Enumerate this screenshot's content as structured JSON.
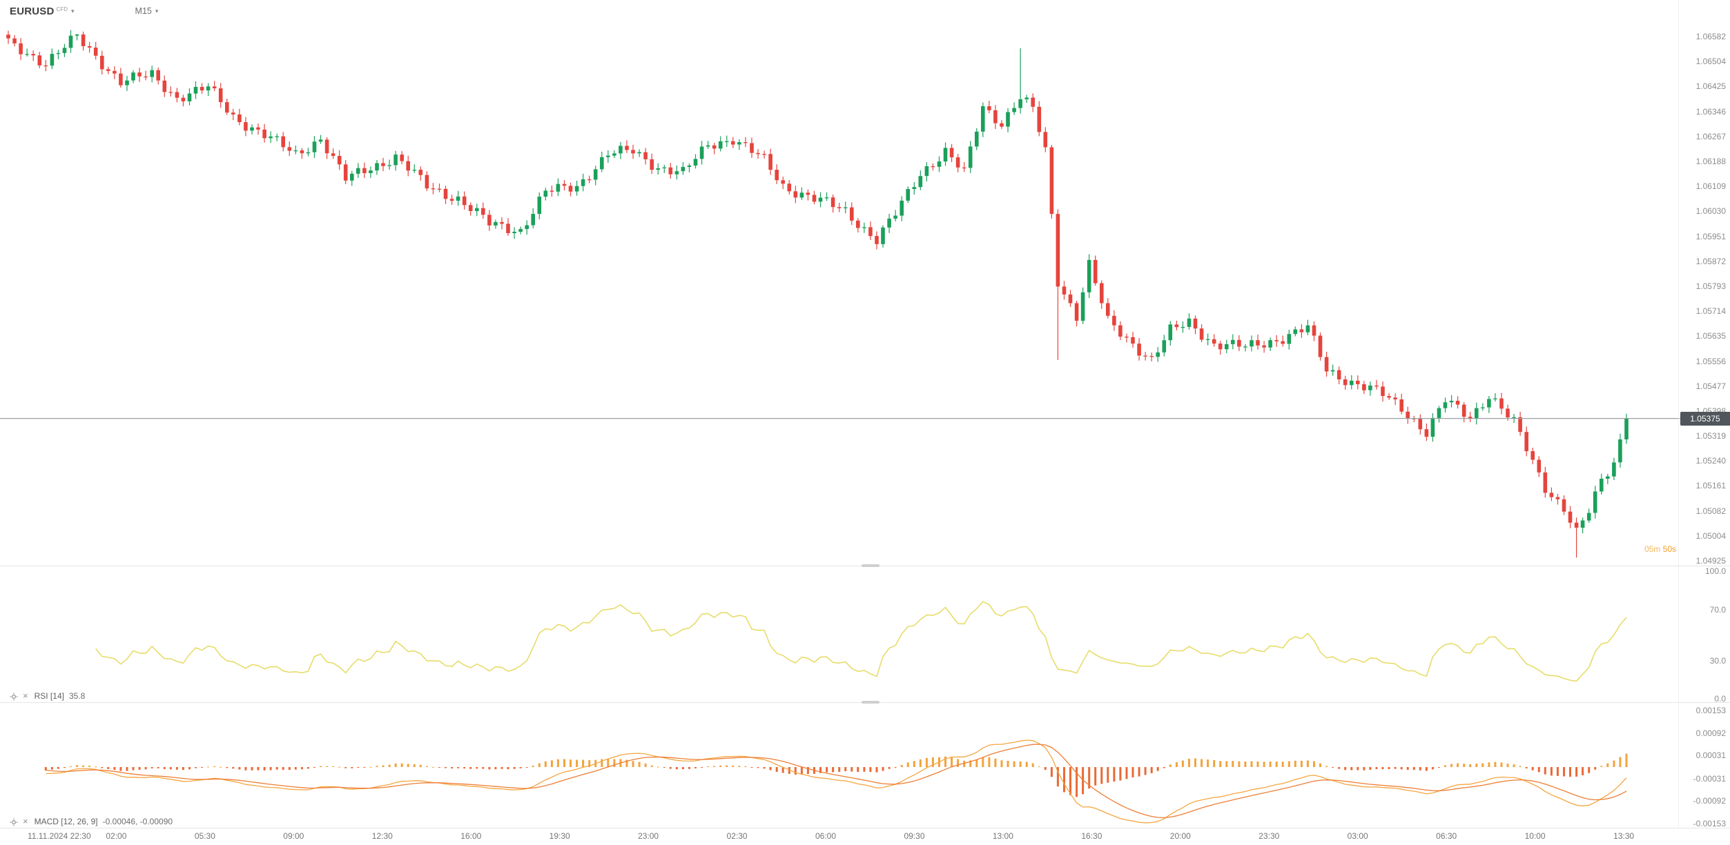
{
  "header": {
    "symbol": "EURUSD",
    "instrument_type": "CFD",
    "timeframe": "M15"
  },
  "icons": {
    "caret_down": "▾",
    "close": "×"
  },
  "colors": {
    "bull": "#1aa05a",
    "bear": "#e5443d",
    "rsi_line": "#e7dc6a",
    "macd_line": "#f4a53f",
    "signal_line": "#ee7d33",
    "hist_pos": "#f2a33c",
    "hist_neg": "#e96a35",
    "price_line": "#9aa0a6",
    "badge_bg": "#51565c",
    "countdown": "#f59b23",
    "axis_text": "#8c8c8c"
  },
  "price_axis": {
    "ticks": [
      "1.06582",
      "1.06504",
      "1.06425",
      "1.06346",
      "1.06267",
      "1.06188",
      "1.06109",
      "1.06030",
      "1.05951",
      "1.05872",
      "1.05793",
      "1.05714",
      "1.05635",
      "1.05556",
      "1.05477",
      "1.05398",
      "1.05319",
      "1.05240",
      "1.05161",
      "1.05082",
      "1.05004",
      "1.04925"
    ]
  },
  "current_price": {
    "value": "1.05375"
  },
  "countdown": {
    "minutes": "05m",
    "seconds": "50s"
  },
  "rsi_panel": {
    "label": "RSI [14]",
    "value": "35.8",
    "ticks": [
      "100.0",
      "70.0",
      "30.0",
      "0.0"
    ]
  },
  "macd_panel": {
    "label": "MACD [12, 26, 9]",
    "value": "-0.00046, -0.00090",
    "ticks": [
      "0.00153",
      "0.00092",
      "0.00031",
      "-0.00031",
      "-0.00092",
      "-0.00153"
    ]
  },
  "time_axis": {
    "labels": [
      "11.11.2024 22:30",
      "02:00",
      "05:30",
      "09:00",
      "12:30",
      "16:00",
      "19:30",
      "23:00",
      "02:30",
      "06:00",
      "09:30",
      "13:00",
      "16:30",
      "20:00",
      "23:30",
      "03:00",
      "06:30",
      "10:00",
      "13:30"
    ]
  },
  "chart_data": {
    "type": "candlestick",
    "symbol": "EURUSD",
    "timeframe": "M15",
    "time_start": "11.11.2024 22:30",
    "time_end": "13:30",
    "ylim": [
      1.04925,
      1.06582
    ],
    "last_price": 1.05375,
    "candle_count": 260,
    "price_path_anchors": [
      [
        0,
        1.0656
      ],
      [
        6,
        1.065
      ],
      [
        11,
        1.0658
      ],
      [
        18,
        1.0644
      ],
      [
        23,
        1.0646
      ],
      [
        27,
        1.0639
      ],
      [
        32,
        1.0642
      ],
      [
        36,
        1.0633
      ],
      [
        41,
        1.0627
      ],
      [
        46,
        1.0621
      ],
      [
        50,
        1.0626
      ],
      [
        54,
        1.0613
      ],
      [
        58,
        1.0617
      ],
      [
        62,
        1.062
      ],
      [
        67,
        1.0611
      ],
      [
        72,
        1.0607
      ],
      [
        77,
        1.0599
      ],
      [
        82,
        1.0597
      ],
      [
        86,
        1.0609
      ],
      [
        91,
        1.0611
      ],
      [
        96,
        1.0621
      ],
      [
        100,
        1.0622
      ],
      [
        104,
        1.0617
      ],
      [
        108,
        1.0615
      ],
      [
        112,
        1.0624
      ],
      [
        116,
        1.0626
      ],
      [
        121,
        1.0619
      ],
      [
        124,
        1.0611
      ],
      [
        129,
        1.0607
      ],
      [
        134,
        1.0603
      ],
      [
        139,
        1.0594
      ],
      [
        142,
        1.0602
      ],
      [
        146,
        1.0615
      ],
      [
        150,
        1.0622
      ],
      [
        153,
        1.0615
      ],
      [
        156,
        1.0636
      ],
      [
        159,
        1.0631
      ],
      [
        162,
        1.0639
      ],
      [
        164,
        1.0635
      ],
      [
        166,
        1.0622
      ],
      [
        168,
        1.0581
      ],
      [
        171,
        1.057
      ],
      [
        173,
        1.0586
      ],
      [
        176,
        1.0568
      ],
      [
        179,
        1.0563
      ],
      [
        183,
        1.0556
      ],
      [
        186,
        1.0565
      ],
      [
        189,
        1.0568
      ],
      [
        193,
        1.0561
      ],
      [
        198,
        1.056
      ],
      [
        204,
        1.0563
      ],
      [
        208,
        1.0566
      ],
      [
        211,
        1.0553
      ],
      [
        215,
        1.0549
      ],
      [
        220,
        1.0545
      ],
      [
        223,
        1.0541
      ],
      [
        227,
        1.0533
      ],
      [
        230,
        1.0543
      ],
      [
        234,
        1.0538
      ],
      [
        237,
        1.0545
      ],
      [
        241,
        1.0536
      ],
      [
        243,
        1.0528
      ],
      [
        246,
        1.0516
      ],
      [
        249,
        1.0509
      ],
      [
        251,
        1.0501
      ],
      [
        253,
        1.0508
      ],
      [
        255,
        1.0518
      ],
      [
        257,
        1.0524
      ],
      [
        259,
        1.05375
      ]
    ],
    "wick_events": [
      {
        "index": 11,
        "kind": "high",
        "price": 1.0659
      },
      {
        "index": 162,
        "kind": "high",
        "price": 1.06545
      },
      {
        "index": 168,
        "kind": "low",
        "price": 1.0556
      },
      {
        "index": 251,
        "kind": "low",
        "price": 1.04935
      }
    ],
    "indicators": [
      {
        "type": "RSI",
        "params": [
          14
        ],
        "last_value": 35.8,
        "range": [
          0,
          100
        ],
        "ticks": [
          100.0,
          70.0,
          30.0,
          0.0
        ]
      },
      {
        "type": "MACD",
        "params": [
          12,
          26,
          9
        ],
        "last_values": [
          -0.00046,
          -0.0009
        ],
        "range": [
          -0.00153,
          0.00153
        ],
        "ticks": [
          0.00153,
          0.00092,
          0.00031,
          -0.00031,
          -0.00092,
          -0.00153
        ]
      }
    ]
  }
}
